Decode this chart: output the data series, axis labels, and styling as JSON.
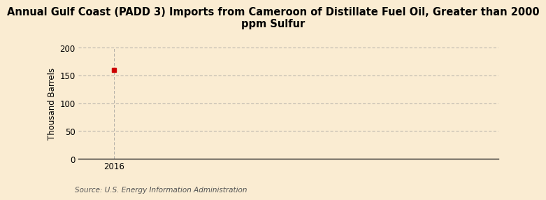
{
  "title_line1": "Annual Gulf Coast (PADD 3) Imports from Cameroon of Distillate Fuel Oil, Greater than 2000",
  "title_line2": "ppm Sulfur",
  "ylabel": "Thousand Barrels",
  "source_text": "Source: U.S. Energy Information Administration",
  "x_data": [
    2016
  ],
  "y_data": [
    160
  ],
  "marker_color": "#cc0000",
  "marker_size": 5,
  "ylim": [
    0,
    200
  ],
  "xlim": [
    2015.4,
    2022.5
  ],
  "yticks": [
    0,
    50,
    100,
    150,
    200
  ],
  "xticks": [
    2016
  ],
  "background_color": "#faecd2",
  "plot_bg_color": "#faecd2",
  "grid_color": "#999999",
  "title_fontsize": 10.5,
  "ylabel_fontsize": 8.5,
  "tick_fontsize": 8.5,
  "source_fontsize": 7.5,
  "vline_x": 2016
}
